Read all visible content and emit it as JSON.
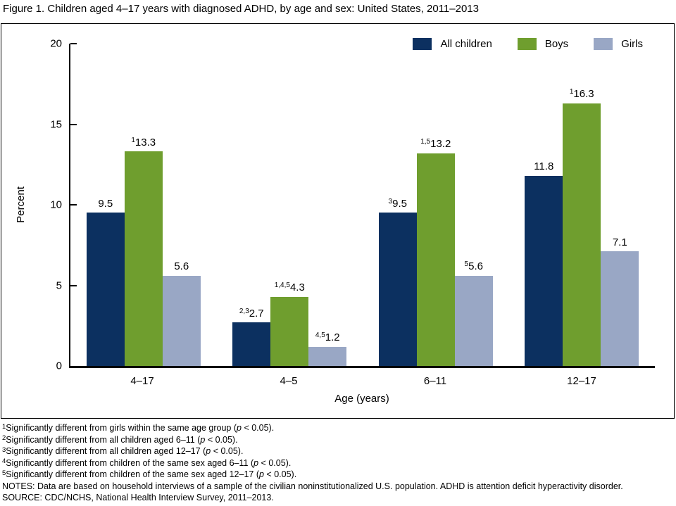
{
  "chart_data": {
    "type": "bar",
    "title": "Figure 1. Children aged 4–17 years with diagnosed ADHD, by age and sex: United States, 2011–2013",
    "categories": [
      "4–17",
      "4–5",
      "6–11",
      "12–17"
    ],
    "series": [
      {
        "name": "All children",
        "color": "#0c3060",
        "values": [
          9.5,
          2.7,
          9.5,
          11.8
        ],
        "superscripts": [
          "",
          "2,3",
          "3",
          ""
        ]
      },
      {
        "name": "Boys",
        "color": "#6f9e2e",
        "values": [
          13.3,
          4.3,
          13.2,
          16.3
        ],
        "superscripts": [
          "1",
          "1,4,5",
          "1,5",
          "1"
        ]
      },
      {
        "name": "Girls",
        "color": "#99a7c5",
        "values": [
          5.6,
          1.2,
          5.6,
          7.1
        ],
        "superscripts": [
          "",
          "4,5",
          "5",
          ""
        ]
      }
    ],
    "xlabel": "Age (years)",
    "ylabel": "Percent",
    "ylim": [
      0,
      20
    ],
    "yticks": [
      0,
      5,
      10,
      15,
      20
    ],
    "legend_position": "top-right",
    "grid": false,
    "value_decimals": 1
  },
  "footnotes": [
    {
      "sup": "1",
      "text": "Significantly different from girls within the same age group (",
      "p": "p",
      "tail": " < 0.05)."
    },
    {
      "sup": "2",
      "text": "Significantly different from all children aged 6–11 (",
      "p": "p",
      "tail": " < 0.05)."
    },
    {
      "sup": "3",
      "text": "Significantly different from all children aged 12–17 (",
      "p": "p",
      "tail": " < 0.05)."
    },
    {
      "sup": "4",
      "text": "Significantly different from children of the same sex aged 6–11 (",
      "p": "p",
      "tail": " < 0.05)."
    },
    {
      "sup": "5",
      "text": "Significantly different from children of the same sex aged 12–17 (",
      "p": "p",
      "tail": " < 0.05)."
    }
  ],
  "notes": "NOTES: Data are based on household interviews of a sample of the civilian noninstitutionalized U.S. population. ADHD is attention deficit hyperactivity disorder.",
  "source": "SOURCE: CDC/NCHS, National Health Interview Survey, 2011–2013."
}
